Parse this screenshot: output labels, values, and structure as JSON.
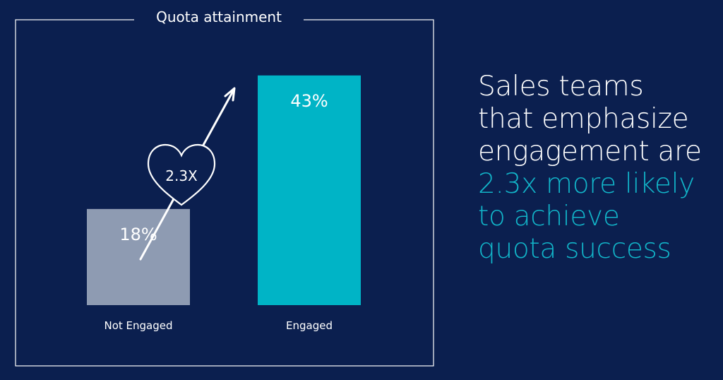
{
  "chart_data": {
    "type": "bar",
    "title": "Quota attainment",
    "categories": [
      "Not Engaged",
      "Engaged"
    ],
    "values": [
      18,
      43
    ],
    "value_labels": [
      "18%",
      "43%"
    ],
    "unit": "%",
    "ylim": [
      0,
      48
    ],
    "grid": false,
    "bar_colors": [
      "#8e9bb2",
      "#00b4c6"
    ],
    "annotation": {
      "label": "2.3X",
      "shape": "heart-icon",
      "arrow": "up-right-arrow-icon"
    }
  },
  "headline": {
    "lines": [
      "Sales teams",
      "that emphasize",
      "engagement are"
    ],
    "highlight_lines": [
      "2.3x more likely",
      "to achieve",
      "quota success"
    ],
    "highlight_color": "#12b5c9"
  },
  "colors": {
    "background": "#0b1f4f",
    "frame": "#ffffff",
    "text": "#ffffff"
  }
}
